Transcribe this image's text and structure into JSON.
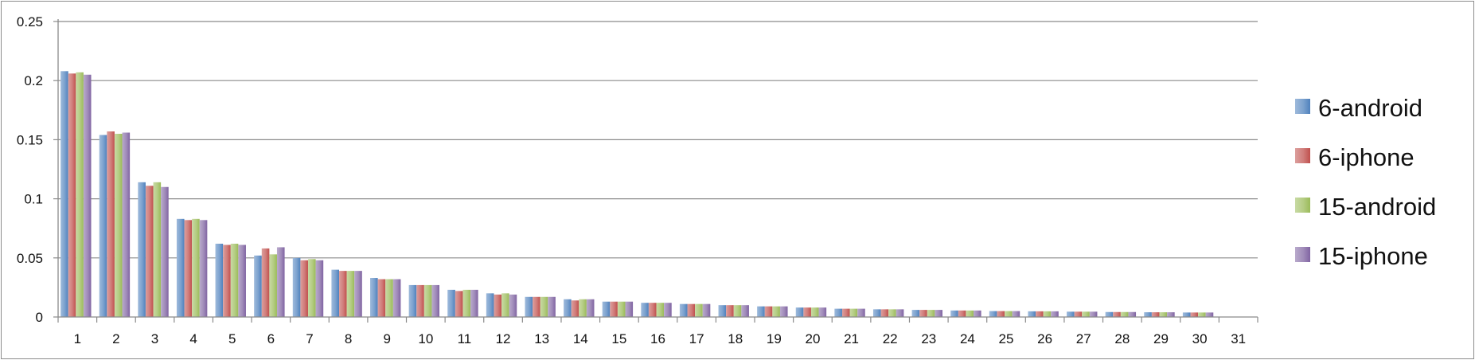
{
  "chart_data": {
    "type": "bar",
    "title": "",
    "xlabel": "",
    "ylabel": "",
    "ylim": [
      0,
      0.25
    ],
    "yticks": [
      "0",
      "0.05",
      "0.1",
      "0.15",
      "0.2",
      "0.25"
    ],
    "ytick_values": [
      0,
      0.05,
      0.1,
      0.15,
      0.2,
      0.25
    ],
    "grid": true,
    "legend_position": "right",
    "categories": [
      "1",
      "2",
      "3",
      "4",
      "5",
      "6",
      "7",
      "8",
      "9",
      "10",
      "11",
      "12",
      "13",
      "14",
      "15",
      "16",
      "17",
      "18",
      "19",
      "20",
      "21",
      "22",
      "23",
      "24",
      "25",
      "26",
      "27",
      "28",
      "29",
      "30",
      "31"
    ],
    "series": [
      {
        "name": "6-android",
        "color": "#4f81bd",
        "values": [
          0.208,
          0.154,
          0.114,
          0.083,
          0.062,
          0.052,
          0.05,
          0.04,
          0.033,
          0.027,
          0.023,
          0.02,
          0.017,
          0.015,
          0.013,
          0.012,
          0.011,
          0.01,
          0.009,
          0.008,
          0.007,
          0.0065,
          0.006,
          0.0055,
          0.005,
          0.0048,
          0.0045,
          0.0042,
          0.004,
          0.0038,
          0
        ]
      },
      {
        "name": "6-iphone",
        "color": "#c0504d",
        "values": [
          0.206,
          0.157,
          0.111,
          0.082,
          0.061,
          0.058,
          0.048,
          0.039,
          0.032,
          0.027,
          0.022,
          0.019,
          0.017,
          0.014,
          0.013,
          0.012,
          0.011,
          0.01,
          0.009,
          0.008,
          0.007,
          0.0065,
          0.006,
          0.0055,
          0.005,
          0.0048,
          0.0045,
          0.0042,
          0.004,
          0.0038,
          0
        ]
      },
      {
        "name": "15-android",
        "color": "#9bbb59",
        "values": [
          0.207,
          0.155,
          0.114,
          0.083,
          0.062,
          0.053,
          0.049,
          0.039,
          0.032,
          0.027,
          0.023,
          0.02,
          0.017,
          0.015,
          0.013,
          0.012,
          0.011,
          0.01,
          0.009,
          0.008,
          0.007,
          0.0065,
          0.006,
          0.0055,
          0.005,
          0.0048,
          0.0045,
          0.0042,
          0.004,
          0.0038,
          0
        ]
      },
      {
        "name": "15-iphone",
        "color": "#8064a2",
        "values": [
          0.205,
          0.156,
          0.11,
          0.082,
          0.061,
          0.059,
          0.048,
          0.039,
          0.032,
          0.027,
          0.023,
          0.019,
          0.017,
          0.015,
          0.013,
          0.012,
          0.011,
          0.01,
          0.009,
          0.008,
          0.007,
          0.0065,
          0.006,
          0.0055,
          0.005,
          0.0048,
          0.0045,
          0.0042,
          0.004,
          0.0038,
          0
        ]
      }
    ]
  }
}
